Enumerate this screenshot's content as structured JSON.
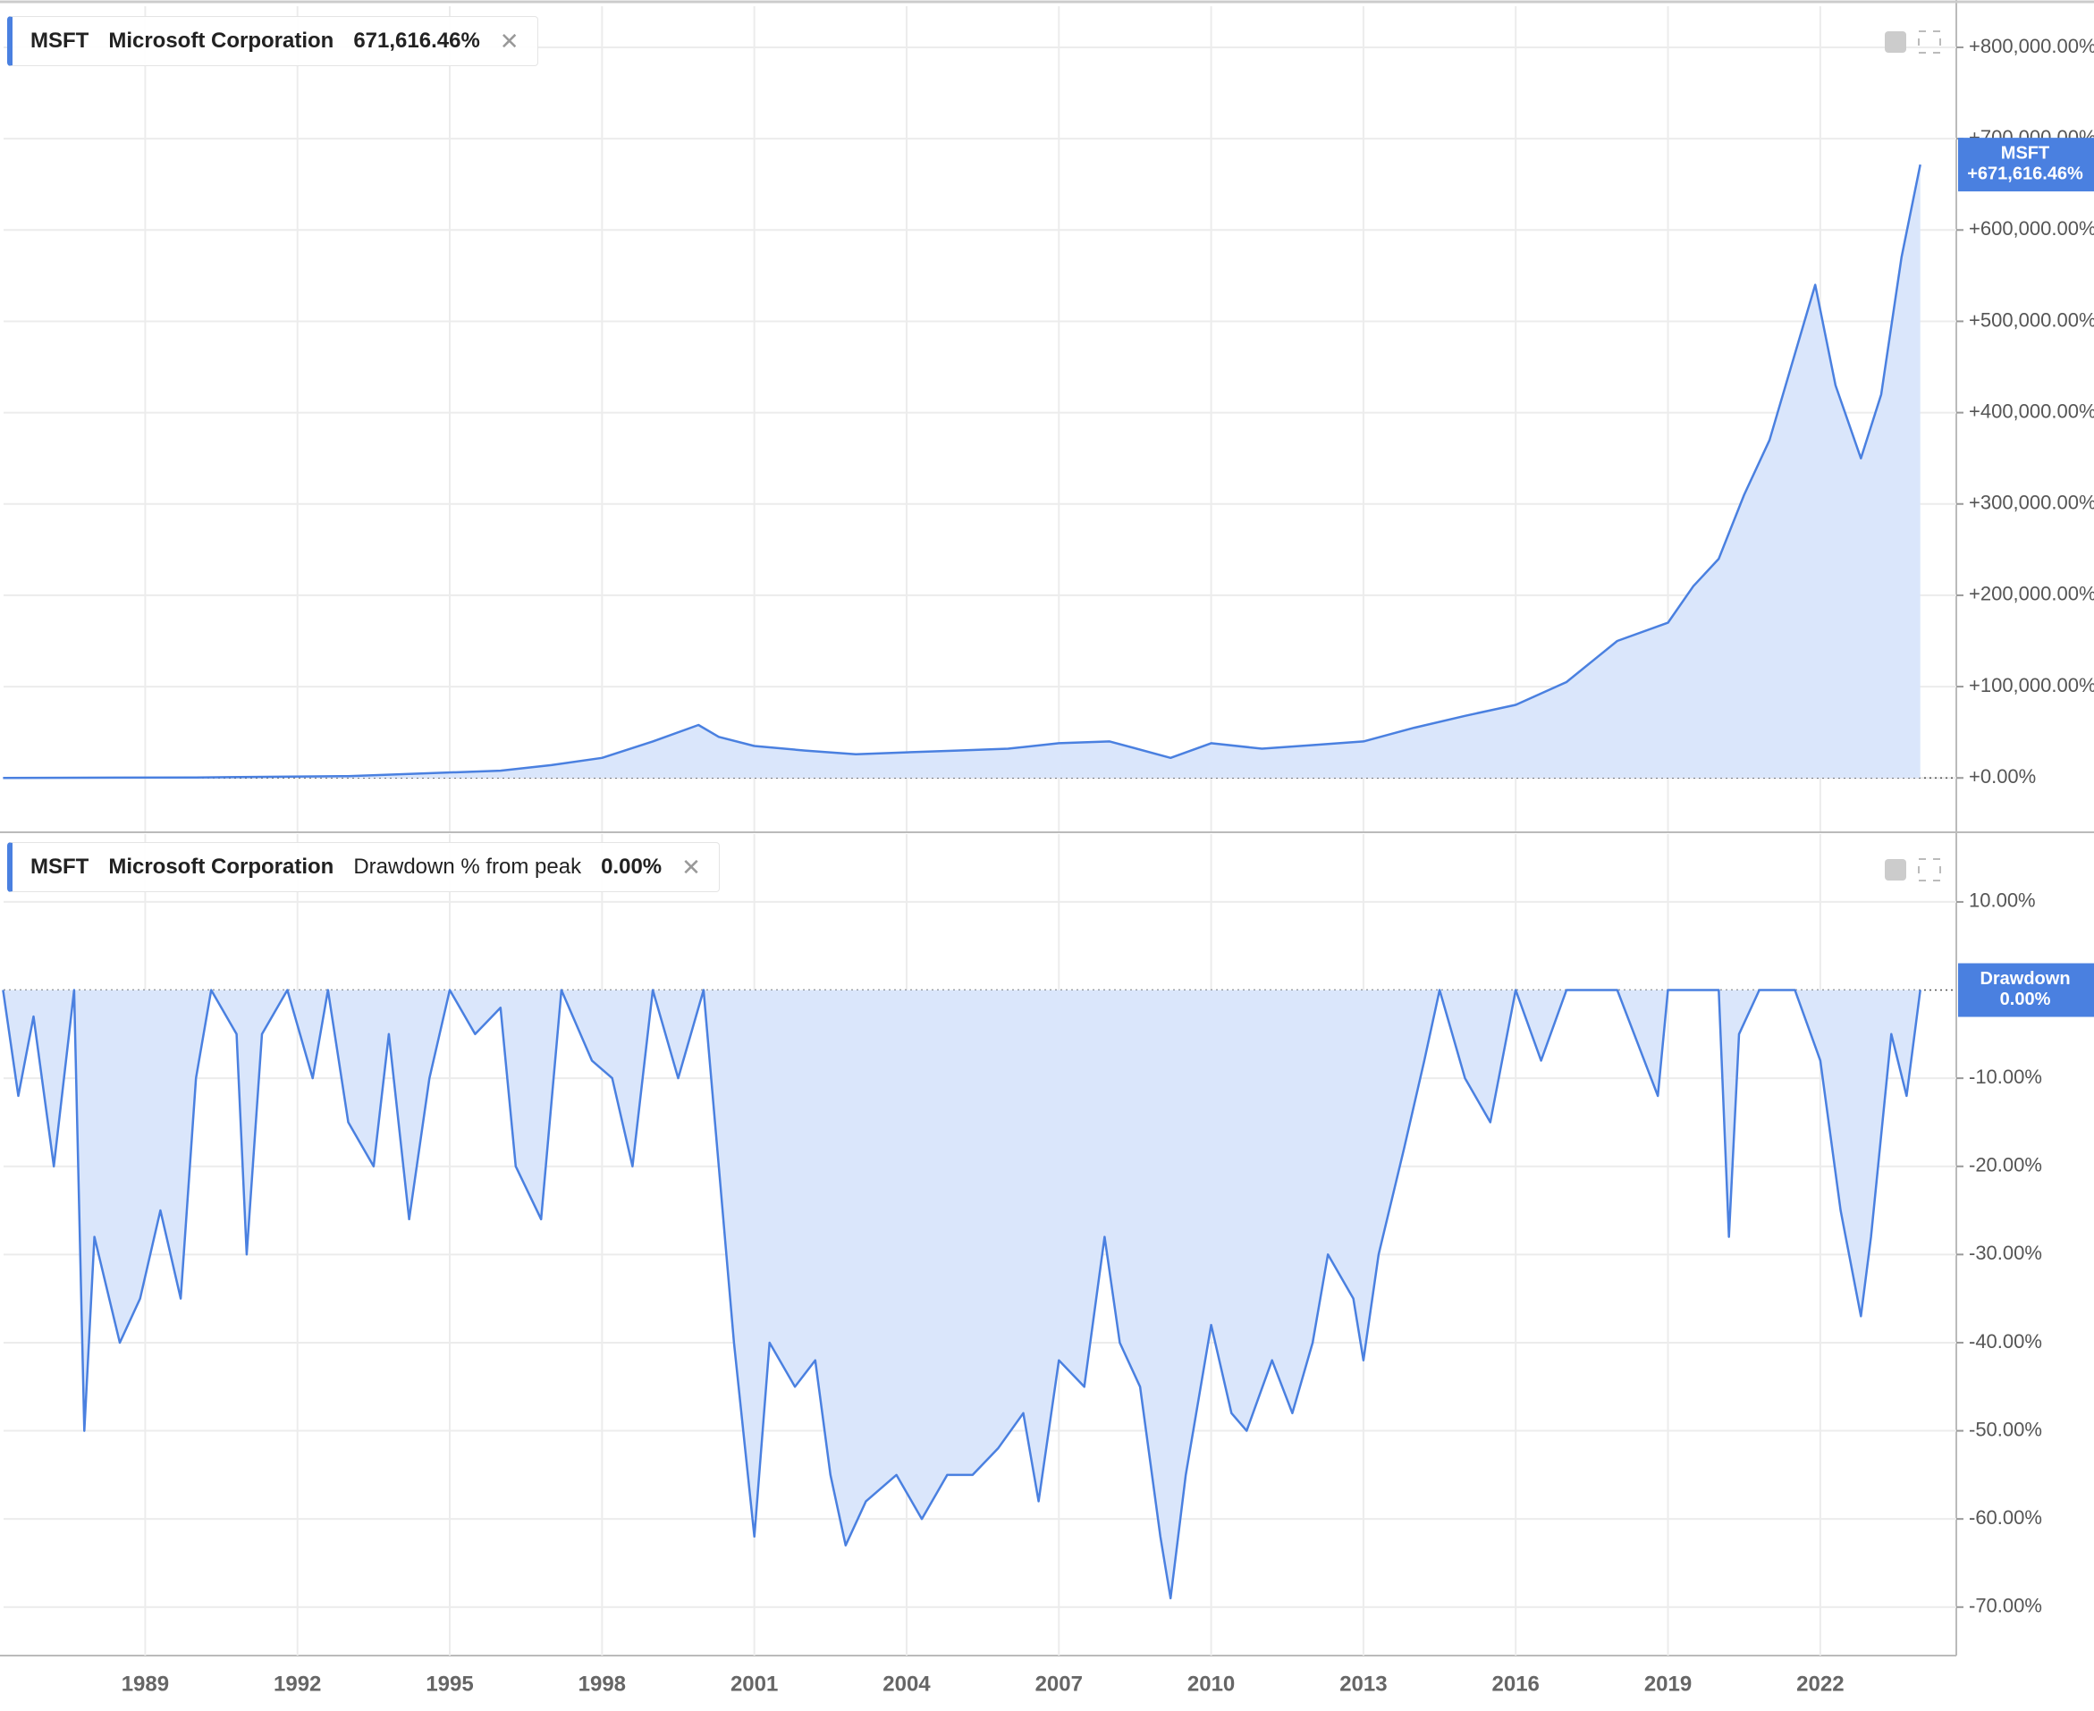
{
  "chart_data": [
    {
      "type": "area",
      "symbol": "MSFT",
      "company": "Microsoft Corporation",
      "header_value": "671,616.46%",
      "series": [
        {
          "name": "MSFT",
          "color": "#4a80e0",
          "fill": "#dae6fb",
          "x": [
            1986.2,
            1990,
            1993,
            1996,
            1997,
            1998,
            1999,
            1999.9,
            2000.3,
            2001,
            2002,
            2003,
            2004,
            2005,
            2006,
            2007,
            2008,
            2009.2,
            2010,
            2011,
            2012,
            2013,
            2014,
            2015,
            2016,
            2017,
            2018,
            2019,
            2019.5,
            2020,
            2020.5,
            2021,
            2021.9,
            2022.3,
            2022.8,
            2023.2,
            2023.6,
            2023.97
          ],
          "values": [
            0,
            500,
            2000,
            8000,
            14000,
            22000,
            40000,
            58000,
            45000,
            35000,
            30000,
            26000,
            28000,
            30000,
            32000,
            38000,
            40000,
            22000,
            38000,
            32000,
            36000,
            40000,
            55000,
            68000,
            80000,
            105000,
            150000,
            170000,
            210000,
            240000,
            310000,
            370000,
            540000,
            430000,
            350000,
            420000,
            570000,
            671616.46
          ]
        }
      ],
      "tag": {
        "name": "MSFT",
        "value": 671616.46,
        "label": "+671,616.46%"
      },
      "xlim": [
        1986.21,
        2024.68
      ],
      "xticks": [
        1989,
        1992,
        1995,
        1998,
        2001,
        2004,
        2007,
        2010,
        2013,
        2016,
        2019,
        2022
      ],
      "ylim": [
        -58500,
        845000
      ],
      "yticks": [
        {
          "value": 0,
          "label": "+0.00%"
        },
        {
          "value": 100000,
          "label": "+100,000.00%"
        },
        {
          "value": 200000,
          "label": "+200,000.00%"
        },
        {
          "value": 300000,
          "label": "+300,000.00%"
        },
        {
          "value": 400000,
          "label": "+400,000.00%"
        },
        {
          "value": 500000,
          "label": "+500,000.00%"
        },
        {
          "value": 600000,
          "label": "+600,000.00%"
        },
        {
          "value": 700000,
          "label": "+700,000.00%"
        },
        {
          "value": 800000,
          "label": "+800,000.00%"
        }
      ],
      "grid": true
    },
    {
      "type": "area",
      "symbol": "MSFT",
      "company": "Microsoft Corporation",
      "indicator": "Drawdown % from peak",
      "header_value": "0.00%",
      "series": [
        {
          "name": "Drawdown",
          "color": "#4a80e0",
          "fill": "#dae6fb",
          "x": [
            1986.2,
            1986.5,
            1986.8,
            1987.2,
            1987.6,
            1987.8,
            1988,
            1988.5,
            1988.9,
            1989.3,
            1989.7,
            1990,
            1990.3,
            1990.8,
            1991,
            1991.3,
            1991.8,
            1992.3,
            1992.6,
            1993,
            1993.5,
            1993.8,
            1994.2,
            1994.6,
            1995,
            1995.5,
            1996,
            1996.3,
            1996.8,
            1997.2,
            1997.8,
            1998.2,
            1998.6,
            1999,
            1999.5,
            2000,
            2000.3,
            2000.6,
            2001,
            2001.3,
            2001.8,
            2002.2,
            2002.5,
            2002.8,
            2003.2,
            2003.8,
            2004.3,
            2004.8,
            2005.3,
            2005.8,
            2006.3,
            2006.6,
            2007,
            2007.5,
            2007.9,
            2008.2,
            2008.6,
            2009,
            2009.2,
            2009.5,
            2010,
            2010.4,
            2010.7,
            2011.2,
            2011.6,
            2012,
            2012.3,
            2012.8,
            2013,
            2013.3,
            2013.8,
            2014.2,
            2014.5,
            2015,
            2015.5,
            2016,
            2016.5,
            2017,
            2018,
            2018.8,
            2019,
            2020,
            2020.2,
            2020.4,
            2020.8,
            2021.5,
            2022,
            2022.4,
            2022.8,
            2023,
            2023.4,
            2023.7,
            2023.97
          ],
          "values": [
            0,
            -12,
            -3,
            -20,
            0,
            -50,
            -28,
            -40,
            -35,
            -25,
            -35,
            -10,
            0,
            -5,
            -30,
            -5,
            0,
            -10,
            0,
            -15,
            -20,
            -5,
            -26,
            -10,
            0,
            -5,
            -2,
            -20,
            -26,
            0,
            -8,
            -10,
            -20,
            0,
            -10,
            0,
            -20,
            -40,
            -62,
            -40,
            -45,
            -42,
            -55,
            -63,
            -58,
            -55,
            -60,
            -55,
            -55,
            -52,
            -48,
            -58,
            -42,
            -45,
            -28,
            -40,
            -45,
            -62,
            -69,
            -55,
            -38,
            -48,
            -50,
            -42,
            -48,
            -40,
            -30,
            -35,
            -42,
            -30,
            -18,
            -8,
            0,
            -10,
            -15,
            0,
            -8,
            0,
            0,
            -12,
            0,
            0,
            -28,
            -5,
            0,
            0,
            -8,
            -25,
            -37,
            -28,
            -5,
            -12,
            0
          ]
        }
      ],
      "tag": {
        "name": "Drawdown",
        "value": 0,
        "label": "0.00%"
      },
      "xlim": [
        1986.21,
        2024.68
      ],
      "xticks": [
        1989,
        1992,
        1995,
        1998,
        2001,
        2004,
        2007,
        2010,
        2013,
        2016,
        2019,
        2022
      ],
      "ylim": [
        -75.5,
        17.7
      ],
      "yticks": [
        {
          "value": 10,
          "label": "10.00%"
        },
        {
          "value": -10,
          "label": "-10.00%"
        },
        {
          "value": -20,
          "label": "-20.00%"
        },
        {
          "value": -30,
          "label": "-30.00%"
        },
        {
          "value": -40,
          "label": "-40.00%"
        },
        {
          "value": -50,
          "label": "-50.00%"
        },
        {
          "value": -60,
          "label": "-60.00%"
        },
        {
          "value": -70,
          "label": "-70.00%"
        }
      ],
      "grid": true
    }
  ]
}
